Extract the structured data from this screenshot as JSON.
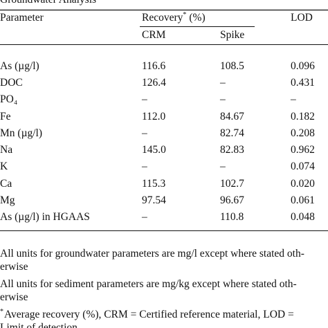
{
  "title": "Groundwater Analysis",
  "table": {
    "header": {
      "parameter": "Parameter",
      "recovery": "Recovery",
      "recovery_mark": "*",
      "recovery_unit": "(%)",
      "lod": "LOD"
    },
    "subheader": [
      "CRM",
      "Spike"
    ],
    "rows": [
      [
        "As (µg/l)",
        "116.6",
        "108.5",
        "0.096"
      ],
      [
        "DOC",
        "126.4",
        "–",
        "0.431"
      ],
      [
        "PO₄",
        "–",
        "–",
        "–"
      ],
      [
        "Fe",
        "112.0",
        "84.67",
        "0.182"
      ],
      [
        "Mn (µg/l)",
        "–",
        "82.74",
        "0.208"
      ],
      [
        "Na",
        "145.0",
        "82.83",
        "0.962"
      ],
      [
        "K",
        "–",
        "–",
        "0.074"
      ],
      [
        "Ca",
        "115.3",
        "102.7",
        "0.020"
      ],
      [
        "Mg",
        "97.54",
        "96.67",
        "0.061"
      ],
      [
        "As (µg/l) in HGAAS",
        "–",
        "110.8",
        "0.048"
      ]
    ]
  },
  "notes": [
    "All units for groundwater parameters are mg/l except where stated oth-",
    "erwise",
    "All units for sediment parameters are mg/kg except where stated oth-",
    "erwise",
    "Average recovery (%), CRM = Certified reference material, LOD =",
    "Limit of detection"
  ],
  "footnote_mark": "*"
}
